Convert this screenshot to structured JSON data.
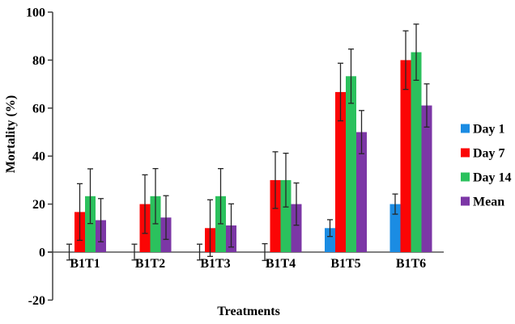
{
  "chart_data": {
    "type": "bar",
    "title": "",
    "xlabel": "Treatments",
    "ylabel": "Mortality (%)",
    "ylim": [
      -20,
      100
    ],
    "ytick_step": 20,
    "yticks": [
      100,
      80,
      60,
      40,
      20,
      0,
      -20
    ],
    "grid": false,
    "legend_position": "right",
    "categories": [
      "B1T1",
      "B1T2",
      "B1T3",
      "B1T4",
      "B1T5",
      "B1T6"
    ],
    "series": [
      {
        "name": "Day 1",
        "color": "#1b8ce3",
        "values": [
          0,
          0,
          0,
          0,
          10,
          20
        ],
        "errors": [
          3.3,
          3.3,
          3.3,
          3.5,
          3.5,
          4.2
        ]
      },
      {
        "name": "Day 7",
        "color": "#fb0505",
        "values": [
          16.7,
          20,
          10,
          30,
          66.7,
          80
        ],
        "errors": [
          11.8,
          12.2,
          11.8,
          11.8,
          12,
          12.2
        ]
      },
      {
        "name": "Day 14",
        "color": "#2bc15d",
        "values": [
          23.3,
          23.3,
          23.3,
          30,
          73.3,
          83.3
        ],
        "errors": [
          11.4,
          11.5,
          11.5,
          11.2,
          11.3,
          11.7
        ]
      },
      {
        "name": "Mean",
        "color": "#7c37a6",
        "values": [
          13.3,
          14.4,
          11.1,
          20,
          50,
          61.1
        ],
        "errors": [
          9,
          9.1,
          9,
          8.8,
          9,
          9
        ]
      }
    ],
    "colors": {
      "baseline": "#808080",
      "axis": "#404040",
      "error_bar": "#262626",
      "text": "#000000",
      "background": "#ffffff"
    }
  }
}
